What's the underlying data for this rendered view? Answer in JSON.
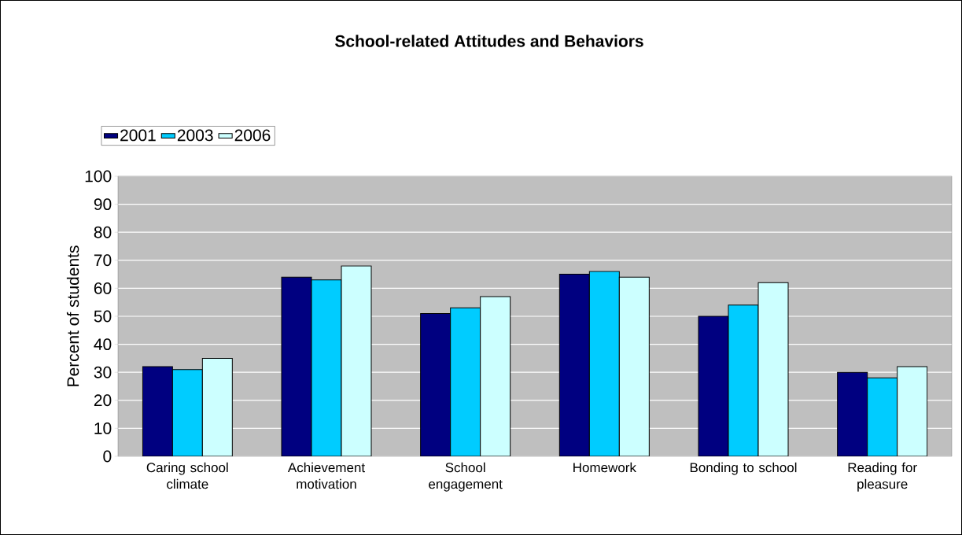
{
  "chart_data": {
    "type": "bar",
    "title": "School-related Attitudes and Behaviors",
    "ylabel": "Percent of students",
    "categories": [
      "Caring school climate",
      "Achievement motivation",
      "School engagement",
      "Homework",
      "Bonding to school",
      "Reading for pleasure"
    ],
    "series": [
      {
        "name": "2001",
        "color": "#000080",
        "values": [
          32,
          64,
          51,
          65,
          50,
          30
        ]
      },
      {
        "name": "2003",
        "color": "#00ccff",
        "values": [
          31,
          63,
          53,
          66,
          54,
          28
        ]
      },
      {
        "name": "2006",
        "color": "#ccffff",
        "values": [
          35,
          68,
          57,
          64,
          62,
          32
        ]
      }
    ],
    "ylim": [
      0,
      100
    ],
    "yticks": [
      0,
      10,
      20,
      30,
      40,
      50,
      60,
      70,
      80,
      90,
      100
    ],
    "grid": "y",
    "legend": "top left"
  }
}
